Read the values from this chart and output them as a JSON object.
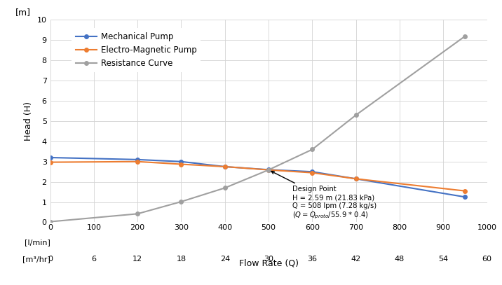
{
  "mechanical_pump_x": [
    0,
    200,
    300,
    400,
    500,
    600,
    700,
    950
  ],
  "mechanical_pump_y": [
    3.2,
    3.1,
    3.0,
    2.75,
    2.6,
    2.5,
    2.15,
    1.25
  ],
  "electro_pump_x": [
    0,
    200,
    300,
    400,
    500,
    600,
    700,
    950
  ],
  "electro_pump_y": [
    2.97,
    3.0,
    2.87,
    2.75,
    2.59,
    2.45,
    2.15,
    1.55
  ],
  "resistance_x": [
    0,
    200,
    300,
    400,
    500,
    600,
    700,
    950
  ],
  "resistance_y": [
    0.03,
    0.42,
    1.02,
    1.7,
    2.59,
    3.6,
    5.3,
    9.2
  ],
  "design_point_x": 500,
  "design_point_y": 2.59,
  "mechanical_color": "#4472C4",
  "electro_color": "#ED7D31",
  "resistance_color": "#A0A0A0",
  "xlabel": "Flow Rate (Q)",
  "ylabel": "Head (H)",
  "ylim": [
    0,
    10
  ],
  "xlim": [
    0,
    1000
  ],
  "yticks": [
    0,
    1,
    2,
    3,
    4,
    5,
    6,
    7,
    8,
    9,
    10
  ],
  "xticks_lmin": [
    0,
    100,
    200,
    300,
    400,
    500,
    600,
    700,
    800,
    900,
    1000
  ],
  "xticks_m3hr": [
    0,
    6,
    12,
    18,
    24,
    30,
    36,
    42,
    48,
    54,
    60
  ],
  "legend_labels": [
    "Mechanical Pump",
    "Electro-Magnetic Pump",
    "Resistance Curve"
  ],
  "ylabel_unit": "[m]",
  "xlabel_unit_lmin": "[l/min]",
  "xlabel_unit_m3hr": "[m³/hr]"
}
